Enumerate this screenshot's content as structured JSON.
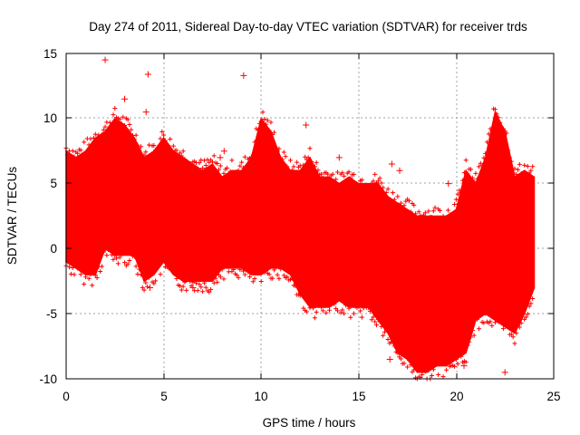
{
  "chart_data": {
    "type": "scatter",
    "title": "Day 274 of 2011, Sidereal Day-to-day VTEC variation (SDTVAR) for receiver trds",
    "xlabel": "GPS time / hours",
    "ylabel": "SDTVAR / TECUs",
    "xlim": [
      0,
      25
    ],
    "ylim": [
      -10,
      15
    ],
    "xticks": [
      "0",
      "5",
      "10",
      "15",
      "20",
      "25"
    ],
    "yticks": [
      "-10",
      "-5",
      "0",
      "5",
      "10",
      "15"
    ],
    "grid": true,
    "marker": "+",
    "series_color": "#ff0000",
    "envelope": {
      "x": [
        0.0,
        0.5,
        1.0,
        1.5,
        2.0,
        2.5,
        3.0,
        3.5,
        4.0,
        4.5,
        5.0,
        5.5,
        6.0,
        6.5,
        7.0,
        7.5,
        8.0,
        8.5,
        9.0,
        9.5,
        10.0,
        10.5,
        11.0,
        11.5,
        12.0,
        12.5,
        13.0,
        13.5,
        14.0,
        14.5,
        15.0,
        15.5,
        16.0,
        16.5,
        17.0,
        17.5,
        18.0,
        18.5,
        19.0,
        19.5,
        20.0,
        20.5,
        21.0,
        21.5,
        22.0,
        22.5,
        23.0,
        23.5,
        24.0
      ],
      "upper": [
        7.5,
        7.0,
        7.5,
        8.5,
        9.0,
        10.0,
        9.5,
        8.5,
        7.0,
        7.5,
        8.5,
        7.5,
        7.0,
        6.5,
        6.0,
        6.5,
        5.5,
        6.0,
        6.0,
        7.0,
        10.0,
        9.0,
        7.0,
        6.0,
        6.0,
        7.0,
        5.5,
        5.5,
        5.0,
        5.5,
        5.0,
        5.0,
        5.0,
        4.0,
        3.5,
        3.0,
        2.5,
        2.5,
        2.5,
        2.5,
        3.0,
        6.0,
        5.0,
        7.0,
        10.5,
        9.0,
        5.5,
        6.0,
        5.5
      ],
      "lower": [
        -1.0,
        -1.5,
        -2.0,
        -2.0,
        0.0,
        -0.5,
        -0.5,
        -0.5,
        -2.5,
        -2.0,
        -1.0,
        -2.0,
        -2.5,
        -2.5,
        -2.5,
        -2.5,
        -1.5,
        -1.5,
        -1.5,
        -2.0,
        -2.0,
        -1.5,
        -1.5,
        -2.0,
        -3.5,
        -4.5,
        -4.5,
        -4.5,
        -4.0,
        -4.5,
        -4.5,
        -4.5,
        -5.5,
        -6.5,
        -8.0,
        -8.5,
        -9.5,
        -9.5,
        -9.0,
        -9.0,
        -8.5,
        -8.0,
        -5.5,
        -5.0,
        -5.5,
        -6.0,
        -6.5,
        -5.0,
        -3.0
      ]
    },
    "outliers": [
      {
        "x": 2.0,
        "y": 14.5
      },
      {
        "x": 4.2,
        "y": 13.4
      },
      {
        "x": 9.1,
        "y": 13.3
      },
      {
        "x": 12.3,
        "y": 9.5
      },
      {
        "x": 3.0,
        "y": 11.5
      },
      {
        "x": 4.1,
        "y": 10.5
      },
      {
        "x": 7.9,
        "y": 7.0
      },
      {
        "x": 8.1,
        "y": 7.5
      },
      {
        "x": 16.7,
        "y": 6.5
      },
      {
        "x": 17.1,
        "y": 6.0
      },
      {
        "x": 19.6,
        "y": 5.0
      },
      {
        "x": 14.0,
        "y": 7.0
      },
      {
        "x": 22.5,
        "y": -9.5
      },
      {
        "x": 20.4,
        "y": -9.0
      },
      {
        "x": 16.6,
        "y": -8.5
      },
      {
        "x": 4.3,
        "y": -3.0
      },
      {
        "x": 6.5,
        "y": -3.0
      }
    ]
  }
}
